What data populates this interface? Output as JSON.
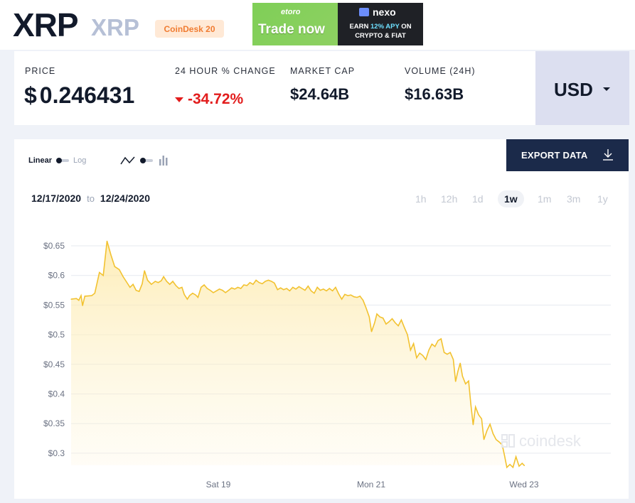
{
  "header": {
    "coin_name": "XRP",
    "coin_symbol": "XRP",
    "index_badge": "CoinDesk 20"
  },
  "ad": {
    "left_brand": "etoro",
    "left_cta": "Trade now",
    "right_brand": "nexo",
    "right_line1_pre": "EARN ",
    "right_line1_apy": "12% APY",
    "right_line1_post": " ON",
    "right_line2": "CRYPTO & FIAT"
  },
  "stats": {
    "price_label": "PRICE",
    "price_currency": "$",
    "price_value": "0.246431",
    "change_label": "24 HOUR % CHANGE",
    "change_value": "-34.72%",
    "market_cap_label": "MARKET CAP",
    "market_cap_value": "$24.64B",
    "volume_label": "VOLUME (24H)",
    "volume_value": "$16.63B"
  },
  "currency_selector": {
    "value": "USD"
  },
  "toolbar": {
    "linear_label": "Linear",
    "log_label": "Log",
    "line_icon": "line-chart-icon",
    "bar_icon": "bar-chart-icon",
    "export_label": "EXPORT DATA",
    "export_icon": "download-icon"
  },
  "date_range": {
    "from": "12/17/2020",
    "to_label": "to",
    "to": "12/24/2020"
  },
  "time_ranges": [
    {
      "label": "1h",
      "active": false
    },
    {
      "label": "12h",
      "active": false
    },
    {
      "label": "1d",
      "active": false
    },
    {
      "label": "1w",
      "active": true
    },
    {
      "label": "1m",
      "active": false
    },
    {
      "label": "3m",
      "active": false
    },
    {
      "label": "1y",
      "active": false
    }
  ],
  "watermark": "coindesk",
  "colors": {
    "line": "#f2c230",
    "fill_top": "#fde9a6",
    "negative": "#e21c1c",
    "button_bg": "#1b2a4a",
    "badge_text": "#f07c32"
  },
  "chart_data": {
    "type": "area",
    "title": "",
    "xlabel": "",
    "ylabel": "",
    "x_range": [
      "12/17/2020",
      "12/24/2020"
    ],
    "y_range": [
      0.28,
      0.66
    ],
    "yticks": [
      0.3,
      0.35,
      0.4,
      0.45,
      0.5,
      0.55,
      0.6,
      0.65
    ],
    "ytick_labels": [
      "$0.3",
      "$0.35",
      "$0.4",
      "$0.45",
      "$0.5",
      "$0.55",
      "$0.6",
      "$0.65"
    ],
    "xticks": [
      {
        "label": "Sat 19",
        "day": 2.0
      },
      {
        "label": "Mon 21",
        "day": 4.0
      },
      {
        "label": "Wed 23",
        "day": 6.0
      }
    ],
    "grid": true,
    "series": [
      {
        "values": [
          [
            0.0,
            0.56
          ],
          [
            0.07,
            0.561
          ],
          [
            0.1,
            0.558
          ],
          [
            0.13,
            0.566
          ],
          [
            0.15,
            0.549
          ],
          [
            0.18,
            0.565
          ],
          [
            0.27,
            0.566
          ],
          [
            0.31,
            0.57
          ],
          [
            0.37,
            0.605
          ],
          [
            0.42,
            0.6
          ],
          [
            0.47,
            0.658
          ],
          [
            0.52,
            0.635
          ],
          [
            0.57,
            0.615
          ],
          [
            0.63,
            0.61
          ],
          [
            0.68,
            0.598
          ],
          [
            0.72,
            0.59
          ],
          [
            0.77,
            0.58
          ],
          [
            0.81,
            0.585
          ],
          [
            0.85,
            0.575
          ],
          [
            0.89,
            0.573
          ],
          [
            0.93,
            0.586
          ],
          [
            0.96,
            0.608
          ],
          [
            1.0,
            0.592
          ],
          [
            1.05,
            0.585
          ],
          [
            1.1,
            0.59
          ],
          [
            1.14,
            0.588
          ],
          [
            1.18,
            0.591
          ],
          [
            1.21,
            0.598
          ],
          [
            1.25,
            0.59
          ],
          [
            1.29,
            0.585
          ],
          [
            1.33,
            0.59
          ],
          [
            1.37,
            0.583
          ],
          [
            1.41,
            0.578
          ],
          [
            1.45,
            0.58
          ],
          [
            1.48,
            0.568
          ],
          [
            1.52,
            0.56
          ],
          [
            1.55,
            0.566
          ],
          [
            1.59,
            0.57
          ],
          [
            1.63,
            0.567
          ],
          [
            1.66,
            0.563
          ],
          [
            1.7,
            0.58
          ],
          [
            1.74,
            0.584
          ],
          [
            1.78,
            0.578
          ],
          [
            1.82,
            0.575
          ],
          [
            1.86,
            0.571
          ],
          [
            1.9,
            0.574
          ],
          [
            1.94,
            0.577
          ],
          [
            1.98,
            0.575
          ],
          [
            2.02,
            0.571
          ],
          [
            2.06,
            0.575
          ],
          [
            2.1,
            0.579
          ],
          [
            2.14,
            0.577
          ],
          [
            2.18,
            0.58
          ],
          [
            2.22,
            0.578
          ],
          [
            2.26,
            0.584
          ],
          [
            2.3,
            0.583
          ],
          [
            2.34,
            0.588
          ],
          [
            2.38,
            0.585
          ],
          [
            2.42,
            0.592
          ],
          [
            2.46,
            0.588
          ],
          [
            2.5,
            0.586
          ],
          [
            2.54,
            0.59
          ],
          [
            2.58,
            0.592
          ],
          [
            2.62,
            0.59
          ],
          [
            2.66,
            0.587
          ],
          [
            2.7,
            0.576
          ],
          [
            2.74,
            0.579
          ],
          [
            2.78,
            0.576
          ],
          [
            2.82,
            0.578
          ],
          [
            2.86,
            0.574
          ],
          [
            2.9,
            0.58
          ],
          [
            2.94,
            0.577
          ],
          [
            2.98,
            0.581
          ],
          [
            3.02,
            0.578
          ],
          [
            3.06,
            0.575
          ],
          [
            3.1,
            0.582
          ],
          [
            3.14,
            0.574
          ],
          [
            3.18,
            0.57
          ],
          [
            3.22,
            0.58
          ],
          [
            3.26,
            0.575
          ],
          [
            3.3,
            0.577
          ],
          [
            3.34,
            0.574
          ],
          [
            3.38,
            0.578
          ],
          [
            3.42,
            0.574
          ],
          [
            3.46,
            0.58
          ],
          [
            3.5,
            0.569
          ],
          [
            3.54,
            0.56
          ],
          [
            3.58,
            0.568
          ],
          [
            3.62,
            0.566
          ],
          [
            3.66,
            0.567
          ],
          [
            3.7,
            0.564
          ],
          [
            3.74,
            0.563
          ],
          [
            3.78,
            0.565
          ],
          [
            3.82,
            0.558
          ],
          [
            3.86,
            0.545
          ],
          [
            3.9,
            0.53
          ],
          [
            3.93,
            0.505
          ],
          [
            3.97,
            0.52
          ],
          [
            4.0,
            0.535
          ],
          [
            4.04,
            0.53
          ],
          [
            4.08,
            0.528
          ],
          [
            4.12,
            0.518
          ],
          [
            4.16,
            0.522
          ],
          [
            4.2,
            0.527
          ],
          [
            4.24,
            0.52
          ],
          [
            4.28,
            0.515
          ],
          [
            4.32,
            0.525
          ],
          [
            4.36,
            0.512
          ],
          [
            4.4,
            0.5
          ],
          [
            4.44,
            0.474
          ],
          [
            4.48,
            0.485
          ],
          [
            4.52,
            0.461
          ],
          [
            4.56,
            0.469
          ],
          [
            4.6,
            0.465
          ],
          [
            4.64,
            0.458
          ],
          [
            4.68,
            0.474
          ],
          [
            4.72,
            0.484
          ],
          [
            4.76,
            0.48
          ],
          [
            4.8,
            0.49
          ],
          [
            4.84,
            0.493
          ],
          [
            4.88,
            0.47
          ],
          [
            4.92,
            0.467
          ],
          [
            4.96,
            0.47
          ],
          [
            5.0,
            0.458
          ],
          [
            5.03,
            0.421
          ],
          [
            5.06,
            0.438
          ],
          [
            5.09,
            0.452
          ],
          [
            5.12,
            0.43
          ],
          [
            5.16,
            0.417
          ],
          [
            5.2,
            0.422
          ],
          [
            5.23,
            0.382
          ],
          [
            5.26,
            0.348
          ],
          [
            5.29,
            0.378
          ],
          [
            5.33,
            0.365
          ],
          [
            5.37,
            0.358
          ],
          [
            5.4,
            0.323
          ],
          [
            5.44,
            0.338
          ],
          [
            5.48,
            0.349
          ],
          [
            5.52,
            0.333
          ],
          [
            5.56,
            0.323
          ],
          [
            5.6,
            0.319
          ],
          [
            5.64,
            0.314
          ],
          [
            5.67,
            0.296
          ],
          [
            5.7,
            0.276
          ],
          [
            5.74,
            0.281
          ],
          [
            5.78,
            0.276
          ],
          [
            5.82,
            0.294
          ],
          [
            5.86,
            0.278
          ],
          [
            5.9,
            0.283
          ],
          [
            5.93,
            0.279
          ]
        ]
      }
    ]
  }
}
